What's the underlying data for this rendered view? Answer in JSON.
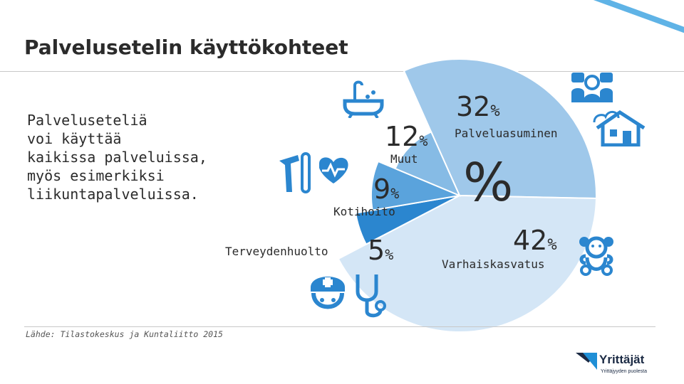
{
  "title": "Palvelusetelin käyttökohteet",
  "intro_lines": [
    "Palveluseteliä",
    "voi käyttää",
    "kaikissa palveluissa,",
    "myös esimerkiksi",
    "liikuntapalveluissa."
  ],
  "center_symbol": "%",
  "source": "Lähde: Tilastokeskus ja Kuntaliitto 2015",
  "logo": {
    "name": "Yrittäjät",
    "tagline": "Yrittäjyyden puolesta"
  },
  "colors": {
    "palveluasuminen": "#9fc8ea",
    "varhaiskasvatus": "#d4e6f6",
    "terveydenhuolto": "#2b86cf",
    "kotihoito": "#5aa3dc",
    "muut": "#86bbe5",
    "icon": "#2b86cf",
    "stripe": "#1f8fd6"
  },
  "chart_data": {
    "type": "pie",
    "title": "Palvelusetelin käyttökohteet",
    "slices": [
      {
        "label": "Palveluasuminen",
        "value": 32,
        "value_text": "32",
        "unit": "%"
      },
      {
        "label": "Varhaiskasvatus",
        "value": 42,
        "value_text": "42",
        "unit": "%"
      },
      {
        "label": "Terveydenhuolto",
        "value": 5,
        "value_text": "5",
        "unit": "%"
      },
      {
        "label": "Kotihoito",
        "value": 9,
        "value_text": "9",
        "unit": "%"
      },
      {
        "label": "Muut",
        "value": 12,
        "value_text": "12",
        "unit": "%"
      }
    ]
  }
}
